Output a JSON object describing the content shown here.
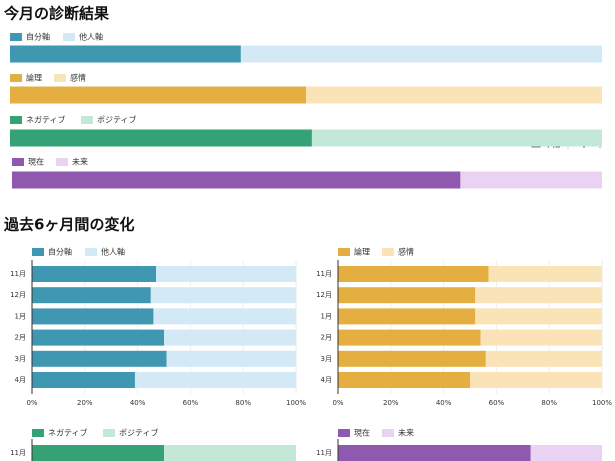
{
  "headings": [
    "今月の診断結果",
    "過去6ヶ月間の変化"
  ],
  "chart_data": [
    {
      "type": "bar",
      "orientation": "horizontal",
      "stacked": true,
      "xlim": [
        0,
        100
      ],
      "series": [
        {
          "name": "自分軸",
          "color": "#3f97b2",
          "values": [
            39
          ]
        },
        {
          "name": "他人軸",
          "color": "#d4e9f6",
          "values": [
            61
          ]
        }
      ]
    },
    {
      "type": "bar",
      "orientation": "horizontal",
      "stacked": true,
      "xlim": [
        0,
        100
      ],
      "series": [
        {
          "name": "論理",
          "color": "#e5ae40",
          "values": [
            50
          ]
        },
        {
          "name": "感情",
          "color": "#fae3b6",
          "values": [
            50
          ]
        }
      ]
    },
    {
      "type": "bar",
      "orientation": "horizontal",
      "stacked": true,
      "xlim": [
        0,
        100
      ],
      "series": [
        {
          "name": "ネガティブ",
          "color": "#35a276",
          "values": [
            51
          ]
        },
        {
          "name": "ポジティブ",
          "color": "#c3e8d7",
          "values": [
            49
          ]
        }
      ]
    },
    {
      "type": "bar",
      "orientation": "horizontal",
      "stacked": true,
      "xlim": [
        0,
        100
      ],
      "series": [
        {
          "name": "現在",
          "color": "#9059b0",
          "values": [
            76
          ]
        },
        {
          "name": "未来",
          "color": "#ead3f2",
          "values": [
            24
          ]
        }
      ]
    },
    {
      "type": "bar",
      "orientation": "horizontal",
      "stacked": true,
      "grid": true,
      "categories": [
        "11月",
        "12月",
        "1月",
        "2月",
        "3月",
        "4月"
      ],
      "xlim": [
        0,
        100
      ],
      "xticks": [
        {
          "value": 0,
          "label": "0%"
        },
        {
          "value": 20,
          "label": "20%"
        },
        {
          "value": 40,
          "label": "40%"
        },
        {
          "value": 60,
          "label": "60%"
        },
        {
          "value": 80,
          "label": "80%"
        },
        {
          "value": 100,
          "label": "100%"
        }
      ],
      "series": [
        {
          "name": "自分軸",
          "color": "#3f97b2",
          "values": [
            47,
            45,
            46,
            50,
            51,
            39
          ]
        },
        {
          "name": "他人軸",
          "color": "#d4e9f6",
          "values": [
            53,
            55,
            54,
            50,
            49,
            61
          ]
        }
      ]
    },
    {
      "type": "bar",
      "orientation": "horizontal",
      "stacked": true,
      "grid": true,
      "categories": [
        "11月",
        "12月",
        "1月",
        "2月",
        "3月",
        "4月"
      ],
      "xlim": [
        0,
        100
      ],
      "xticks": [
        {
          "value": 0,
          "label": "0%"
        },
        {
          "value": 20,
          "label": "20%"
        },
        {
          "value": 40,
          "label": "40%"
        },
        {
          "value": 60,
          "label": "60%"
        },
        {
          "value": 80,
          "label": "80%"
        },
        {
          "value": 100,
          "label": "100%"
        }
      ],
      "series": [
        {
          "name": "論理",
          "color": "#e5ae40",
          "values": [
            57,
            52,
            52,
            54,
            56,
            50
          ]
        },
        {
          "name": "感情",
          "color": "#fae3b6",
          "values": [
            43,
            48,
            48,
            46,
            44,
            50
          ]
        }
      ]
    },
    {
      "type": "bar",
      "orientation": "horizontal",
      "stacked": true,
      "categories": [
        "11月"
      ],
      "xlim": [
        0,
        100
      ],
      "series": [
        {
          "name": "ネガティブ",
          "color": "#35a276",
          "values": [
            50
          ]
        },
        {
          "name": "ポジティブ",
          "color": "#c3e8d7",
          "values": [
            50
          ]
        }
      ]
    },
    {
      "type": "bar",
      "orientation": "horizontal",
      "stacked": true,
      "categories": [
        "11月"
      ],
      "xlim": [
        0,
        100
      ],
      "series": [
        {
          "name": "現在",
          "color": "#9059b0",
          "values": [
            73
          ]
        },
        {
          "name": "未来",
          "color": "#ead3f2",
          "values": [
            27
          ]
        }
      ]
    }
  ]
}
